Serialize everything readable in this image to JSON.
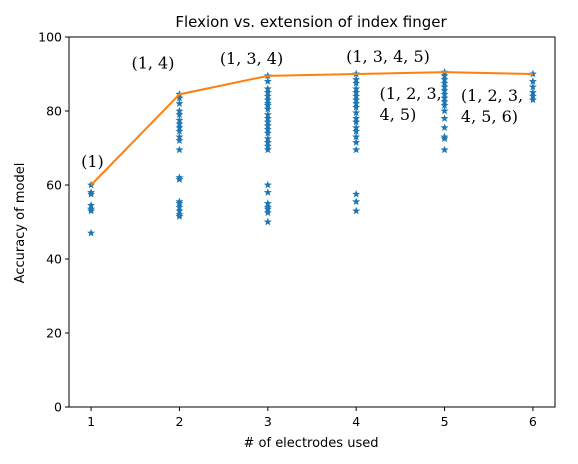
{
  "chart_data": {
    "type": "scatter",
    "title": "Flexion vs. extension of index finger",
    "xlabel": "# of electrodes used",
    "ylabel": "Accuracy of model",
    "xlim": [
      0.75,
      6.25
    ],
    "ylim": [
      0,
      100
    ],
    "xticks": [
      1,
      2,
      3,
      4,
      5,
      6
    ],
    "yticks": [
      0,
      20,
      40,
      60,
      80,
      100
    ],
    "grid": false,
    "colors": {
      "scatter": "#1f77b4",
      "line": "#ff7f0e"
    },
    "scatter_series": {
      "marker": "star",
      "points": [
        [
          1,
          60
        ],
        [
          1,
          58
        ],
        [
          1,
          57.5
        ],
        [
          1,
          54.5
        ],
        [
          1,
          53.5
        ],
        [
          1,
          53
        ],
        [
          1,
          47
        ],
        [
          2,
          84.5
        ],
        [
          2,
          83.5
        ],
        [
          2,
          82
        ],
        [
          2,
          80
        ],
        [
          2,
          79
        ],
        [
          2,
          77.5
        ],
        [
          2,
          76.5
        ],
        [
          2,
          75.5
        ],
        [
          2,
          74.5
        ],
        [
          2,
          73
        ],
        [
          2,
          72
        ],
        [
          2,
          69.5
        ],
        [
          2,
          62
        ],
        [
          2,
          61.5
        ],
        [
          2,
          55.5
        ],
        [
          2,
          55
        ],
        [
          2,
          54
        ],
        [
          2,
          53
        ],
        [
          2,
          52
        ],
        [
          2,
          51.5
        ],
        [
          3,
          89.5
        ],
        [
          3,
          88
        ],
        [
          3,
          86
        ],
        [
          3,
          85
        ],
        [
          3,
          84
        ],
        [
          3,
          83
        ],
        [
          3,
          82
        ],
        [
          3,
          81.5
        ],
        [
          3,
          80.5
        ],
        [
          3,
          79
        ],
        [
          3,
          78
        ],
        [
          3,
          77
        ],
        [
          3,
          76
        ],
        [
          3,
          75
        ],
        [
          3,
          74
        ],
        [
          3,
          72.5
        ],
        [
          3,
          71.5
        ],
        [
          3,
          70.5
        ],
        [
          3,
          69.5
        ],
        [
          3,
          60
        ],
        [
          3,
          58
        ],
        [
          3,
          55
        ],
        [
          3,
          54
        ],
        [
          3,
          53.5
        ],
        [
          3,
          52.5
        ],
        [
          3,
          50
        ],
        [
          4,
          90
        ],
        [
          4,
          88.5
        ],
        [
          4,
          87.5
        ],
        [
          4,
          86
        ],
        [
          4,
          85
        ],
        [
          4,
          84
        ],
        [
          4,
          83
        ],
        [
          4,
          82
        ],
        [
          4,
          81
        ],
        [
          4,
          79.5
        ],
        [
          4,
          78
        ],
        [
          4,
          77
        ],
        [
          4,
          75.5
        ],
        [
          4,
          74.5
        ],
        [
          4,
          73
        ],
        [
          4,
          71.5
        ],
        [
          4,
          69.5
        ],
        [
          4,
          57.5
        ],
        [
          4,
          55.5
        ],
        [
          4,
          53
        ],
        [
          5,
          90.5
        ],
        [
          5,
          89.5
        ],
        [
          5,
          88.5
        ],
        [
          5,
          87.5
        ],
        [
          5,
          86.5
        ],
        [
          5,
          85.5
        ],
        [
          5,
          84.5
        ],
        [
          5,
          83.5
        ],
        [
          5,
          82.5
        ],
        [
          5,
          81.5
        ],
        [
          5,
          80
        ],
        [
          5,
          78
        ],
        [
          5,
          75.5
        ],
        [
          5,
          73
        ],
        [
          5,
          72.5
        ],
        [
          5,
          69.5
        ],
        [
          6,
          90
        ],
        [
          6,
          88
        ],
        [
          6,
          86.5
        ],
        [
          6,
          85
        ],
        [
          6,
          84
        ],
        [
          6,
          83
        ]
      ]
    },
    "line_series": {
      "x": [
        1,
        2,
        3,
        4,
        5,
        6
      ],
      "y": [
        60,
        84.5,
        89.5,
        90,
        90.5,
        90
      ]
    },
    "annotations": [
      {
        "lines": [
          "(1)"
        ],
        "x": 1,
        "y": 60
      },
      {
        "lines": [
          "(1, 4)"
        ],
        "x": 2,
        "y": 84.5
      },
      {
        "lines": [
          "(1, 3, 4)"
        ],
        "x": 3,
        "y": 89.5
      },
      {
        "lines": [
          "(1, 3, 4, 5)"
        ],
        "x": 4,
        "y": 90
      },
      {
        "lines": [
          "(1, 2, 3,",
          "4, 5)"
        ],
        "x": 5,
        "y": 90.5
      },
      {
        "lines": [
          "(1, 2, 3,",
          "4, 5, 6)"
        ],
        "x": 6,
        "y": 90
      }
    ]
  }
}
